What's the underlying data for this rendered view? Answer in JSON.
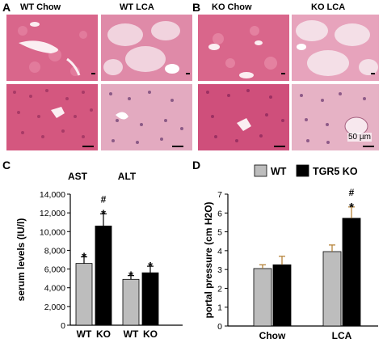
{
  "panels": {
    "A": {
      "letter": "A",
      "titles": [
        "WT Chow",
        "WT LCA"
      ]
    },
    "B": {
      "letter": "B",
      "titles": [
        "KO Chow",
        "KO LCA"
      ],
      "scale_label": "50 µm"
    },
    "C": {
      "letter": "C"
    },
    "D": {
      "letter": "D"
    }
  },
  "colors": {
    "wt": "#bdbdbd",
    "ko": "#000000",
    "tissue_pink": "#d65f86",
    "tissue_pale": "#e9c9d6",
    "tissue_light": "#f3dde6"
  },
  "chart_data": [
    {
      "type": "bar",
      "panel": "C",
      "group_titles": [
        "AST",
        "ALT"
      ],
      "categories": [
        "WT",
        "KO",
        "WT",
        "KO"
      ],
      "values": [
        6600,
        10600,
        4900,
        5600
      ],
      "errors": [
        700,
        1300,
        400,
        700
      ],
      "bar_colors": [
        "wt",
        "ko",
        "wt",
        "ko"
      ],
      "annotations": [
        "*",
        "*\n#",
        "*",
        "*"
      ],
      "ylabel": "serum levels (IU/l)",
      "ylim": [
        0,
        14000
      ],
      "yticks": [
        "0",
        "2,000",
        "4,000",
        "6,000",
        "8,000",
        "10,000",
        "12,000",
        "14,000"
      ],
      "ytick_values": [
        0,
        2000,
        4000,
        6000,
        8000,
        10000,
        12000,
        14000
      ]
    },
    {
      "type": "bar",
      "panel": "D",
      "categories": [
        "Chow",
        "LCA"
      ],
      "series": [
        {
          "name": "WT",
          "values": [
            3.05,
            3.95
          ],
          "errors": [
            0.2,
            0.35
          ]
        },
        {
          "name": "TGR5 KO",
          "values": [
            3.25,
            5.72
          ],
          "errors": [
            0.45,
            0.6
          ]
        }
      ],
      "annotations": {
        "TGR5 KO": [
          "",
          "*\n#"
        ]
      },
      "ylabel": "portal pressure (cm H2O)",
      "ylim": [
        0,
        7
      ],
      "yticks": [
        "0",
        "1",
        "2",
        "3",
        "4",
        "5",
        "6",
        "7"
      ],
      "ytick_values": [
        0,
        1,
        2,
        3,
        4,
        5,
        6,
        7
      ]
    }
  ]
}
